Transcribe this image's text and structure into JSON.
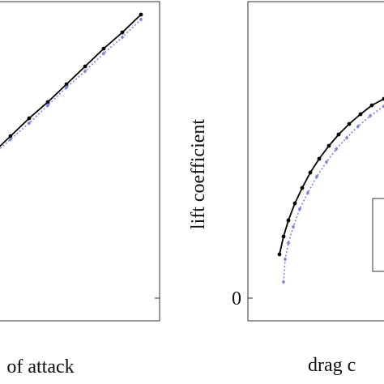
{
  "chart_data": [
    {
      "type": "line",
      "xlabel": "of attack",
      "xlim": [
        -4,
        9
      ],
      "ylim": [
        -0.14,
        1.84
      ],
      "yticks": [
        0
      ],
      "series": [
        {
          "color": "#000000",
          "style": "solid",
          "marker": "circle",
          "x": [
            0,
            1,
            2,
            3,
            4,
            5,
            6,
            7,
            8
          ],
          "values": [
            0.89,
            1.0,
            1.11,
            1.21,
            1.32,
            1.43,
            1.54,
            1.64,
            1.75
          ]
        },
        {
          "color": "#8080e6",
          "style": "dotted",
          "marker": "diamond",
          "x": [
            0,
            1,
            2,
            3,
            4,
            5,
            6,
            7,
            8
          ],
          "values": [
            0.88,
            0.98,
            1.08,
            1.19,
            1.3,
            1.4,
            1.51,
            1.61,
            1.72
          ]
        }
      ]
    },
    {
      "type": "line",
      "xlabel": "drag c",
      "ylabel": "lift coefficient",
      "xlim": [
        0,
        0.05
      ],
      "ylim": [
        -0.14,
        1.84
      ],
      "yticks": [
        0
      ],
      "series": [
        {
          "color": "#000000",
          "style": "solid",
          "marker": "circle",
          "x": [
            0.0078,
            0.0088,
            0.01,
            0.0116,
            0.0134,
            0.0154,
            0.0176,
            0.02,
            0.0224,
            0.025,
            0.0278,
            0.0306,
            0.0336
          ],
          "values": [
            0.27,
            0.38,
            0.48,
            0.585,
            0.68,
            0.775,
            0.86,
            0.94,
            1.01,
            1.075,
            1.135,
            1.19,
            1.23
          ]
        },
        {
          "color": "#8080e6",
          "style": "dotted",
          "marker": "diamond",
          "x": [
            0.0088,
            0.0092,
            0.01,
            0.0112,
            0.0128,
            0.0148,
            0.017,
            0.0194,
            0.0218,
            0.0244,
            0.0272,
            0.0302,
            0.0336
          ],
          "values": [
            0.1,
            0.24,
            0.34,
            0.44,
            0.55,
            0.65,
            0.75,
            0.84,
            0.92,
            0.99,
            1.06,
            1.125,
            1.185
          ]
        }
      ]
    }
  ]
}
